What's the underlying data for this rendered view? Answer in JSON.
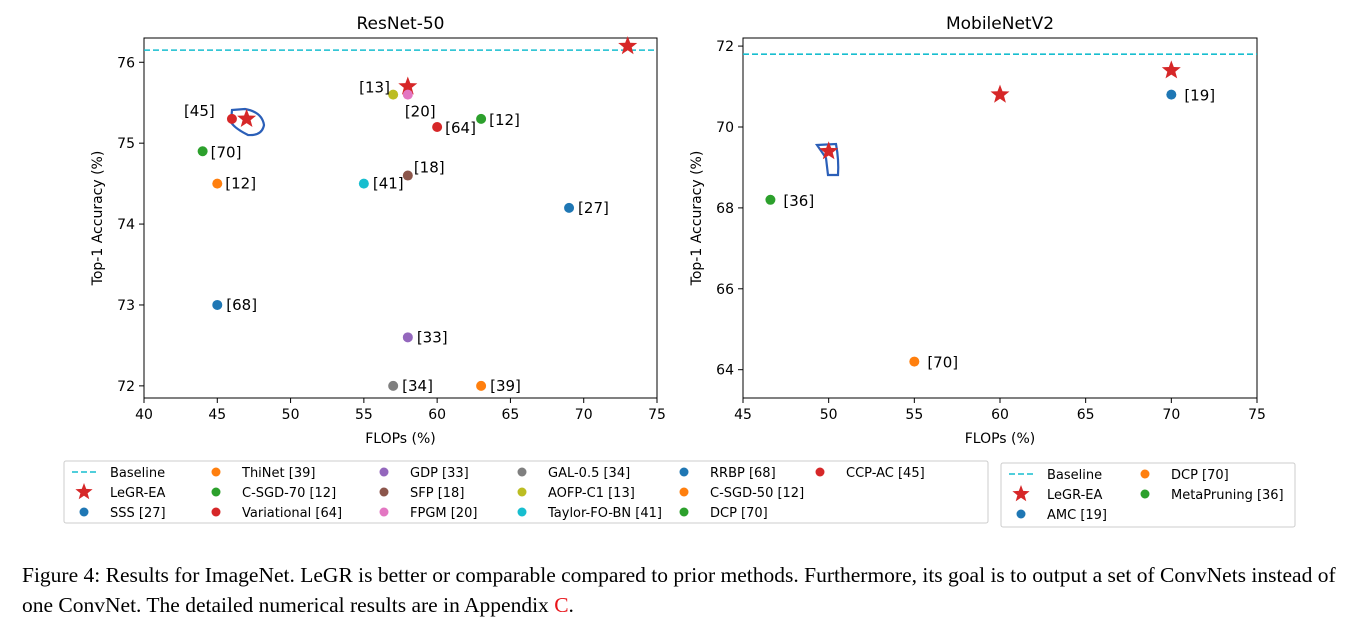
{
  "caption": {
    "text": "Figure 4: Results for ImageNet. LeGR is better or comparable compared to prior methods. Furthermore, its goal is to output a set of ConvNets instead of one ConvNet. The detailed numerical results are in Appendix ",
    "ref": "C",
    "end": "."
  },
  "chart_data": [
    {
      "type": "scatter",
      "title": "ResNet-50",
      "xlabel": "FLOPs (%)",
      "ylabel": "Top-1 Accuracy (%)",
      "xlim": [
        40,
        75
      ],
      "ylim": [
        71.85,
        76.3
      ],
      "xticks": [
        40,
        45,
        50,
        55,
        60,
        65,
        70,
        75
      ],
      "yticks": [
        72,
        73,
        74,
        75,
        76
      ],
      "grid": false,
      "baseline": {
        "name": "Baseline",
        "y": 76.15,
        "color": "#17becf"
      },
      "series": [
        {
          "name": "LeGR-EA",
          "marker": "star",
          "color": "#d62728",
          "points": [
            {
              "x": 47,
              "y": 75.3
            },
            {
              "x": 58,
              "y": 75.7
            },
            {
              "x": 73,
              "y": 76.2
            }
          ]
        },
        {
          "name": "SSS [27]",
          "marker": "circle",
          "color": "#1f77b4",
          "points": [
            {
              "x": 69,
              "y": 74.2,
              "label": "[27]"
            }
          ]
        },
        {
          "name": "ThiNet [39]",
          "marker": "circle",
          "color": "#ff7f0e",
          "points": [
            {
              "x": 63,
              "y": 72.0,
              "label": "[39]"
            }
          ]
        },
        {
          "name": "C-SGD-70 [12]",
          "marker": "circle",
          "color": "#2ca02c",
          "points": [
            {
              "x": 63,
              "y": 75.3,
              "label": "[12]"
            }
          ]
        },
        {
          "name": "Variational [64]",
          "marker": "circle",
          "color": "#d62728",
          "points": [
            {
              "x": 60,
              "y": 75.2,
              "label": "[64]"
            }
          ]
        },
        {
          "name": "GDP [33]",
          "marker": "circle",
          "color": "#9467bd",
          "points": [
            {
              "x": 58,
              "y": 72.6,
              "label": "[33]"
            }
          ]
        },
        {
          "name": "SFP [18]",
          "marker": "circle",
          "color": "#8c564b",
          "points": [
            {
              "x": 58,
              "y": 74.6,
              "label": "[18]"
            }
          ]
        },
        {
          "name": "FPGM [20]",
          "marker": "circle",
          "color": "#e377c2",
          "points": [
            {
              "x": 58,
              "y": 75.6,
              "label": "[20]"
            }
          ]
        },
        {
          "name": "GAL-0.5 [34]",
          "marker": "circle",
          "color": "#7f7f7f",
          "points": [
            {
              "x": 57,
              "y": 72.0,
              "label": "[34]"
            }
          ]
        },
        {
          "name": "AOFP-C1 [13]",
          "marker": "circle",
          "color": "#bcbd22",
          "points": [
            {
              "x": 57,
              "y": 75.6,
              "label": "[13]"
            }
          ]
        },
        {
          "name": "Taylor-FO-BN [41]",
          "marker": "circle",
          "color": "#17becf",
          "points": [
            {
              "x": 55,
              "y": 74.5,
              "label": "[41]"
            }
          ]
        },
        {
          "name": "RRBP [68]",
          "marker": "circle",
          "color": "#1f77b4",
          "points": [
            {
              "x": 45,
              "y": 73.0,
              "label": "[68]"
            }
          ]
        },
        {
          "name": "C-SGD-50 [12]",
          "marker": "circle",
          "color": "#ff7f0e",
          "points": [
            {
              "x": 45,
              "y": 74.5,
              "label": "[12]"
            }
          ]
        },
        {
          "name": "DCP [70]",
          "marker": "circle",
          "color": "#2ca02c",
          "points": [
            {
              "x": 44,
              "y": 74.9,
              "label": "[70]"
            }
          ]
        },
        {
          "name": "CCP-AC [45]",
          "marker": "circle",
          "color": "#d62728",
          "points": [
            {
              "x": 46,
              "y": 75.3,
              "label": "[45]"
            }
          ]
        }
      ],
      "legend": {
        "placement": "bottom",
        "columns": 6
      }
    },
    {
      "type": "scatter",
      "title": "MobileNetV2",
      "xlabel": "FLOPs (%)",
      "ylabel": "Top-1 Accuracy (%)",
      "xlim": [
        45,
        75
      ],
      "ylim": [
        63.3,
        72.2
      ],
      "xticks": [
        45,
        50,
        55,
        60,
        65,
        70,
        75
      ],
      "yticks": [
        64,
        66,
        68,
        70,
        72
      ],
      "grid": false,
      "baseline": {
        "name": "Baseline",
        "y": 71.8,
        "color": "#17becf"
      },
      "series": [
        {
          "name": "LeGR-EA",
          "marker": "star",
          "color": "#d62728",
          "points": [
            {
              "x": 50,
              "y": 69.4
            },
            {
              "x": 60,
              "y": 70.8
            },
            {
              "x": 70,
              "y": 71.4
            }
          ]
        },
        {
          "name": "AMC [19]",
          "marker": "circle",
          "color": "#1f77b4",
          "points": [
            {
              "x": 70,
              "y": 70.8,
              "label": "[19]"
            }
          ]
        },
        {
          "name": "DCP [70]",
          "marker": "circle",
          "color": "#ff7f0e",
          "points": [
            {
              "x": 55,
              "y": 64.2,
              "label": "[70]"
            }
          ]
        },
        {
          "name": "MetaPruning [36]",
          "marker": "circle",
          "color": "#2ca02c",
          "points": [
            {
              "x": 46.6,
              "y": 68.2,
              "label": "[36]"
            }
          ]
        }
      ],
      "legend": {
        "placement": "bottom",
        "columns": 2
      }
    }
  ]
}
